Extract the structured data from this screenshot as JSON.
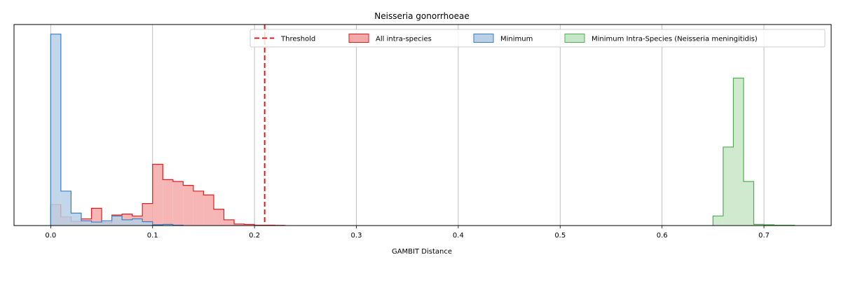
{
  "chart_data": {
    "type": "histogram",
    "title": "Neisseria gonorrhoeae",
    "xlabel": "GAMBIT Distance",
    "ylabel": "",
    "xlim": [
      -0.036,
      0.766
    ],
    "ylim": [
      0,
      1.05
    ],
    "grid": "x",
    "legend_placement": "top-right",
    "x_ticks": [
      0.0,
      0.1,
      0.2,
      0.3,
      0.4,
      0.5,
      0.6,
      0.7
    ],
    "x_tick_labels": [
      "0.0",
      "0.1",
      "0.2",
      "0.3",
      "0.4",
      "0.5",
      "0.6",
      "0.7"
    ],
    "threshold": {
      "name": "Threshold",
      "x": 0.21,
      "color": "#e31a1c"
    },
    "bin_width": 0.01,
    "series": [
      {
        "name": "All intra-species",
        "stroke": "#e31a1c",
        "fill": "#f4a9a9",
        "bins_start": 0.0,
        "values": [
          0.11,
          0.045,
          0.022,
          0.035,
          0.09,
          0.015,
          0.055,
          0.06,
          0.05,
          0.115,
          0.32,
          0.24,
          0.23,
          0.21,
          0.18,
          0.16,
          0.085,
          0.03,
          0.008,
          0.006,
          0.002,
          0.002,
          0.001
        ]
      },
      {
        "name": "Minimum",
        "stroke": "#3a7fc1",
        "fill": "#b9d0e6",
        "bins_start": 0.0,
        "values": [
          1.0,
          0.18,
          0.065,
          0.025,
          0.018,
          0.025,
          0.05,
          0.03,
          0.035,
          0.02,
          0.004,
          0.006,
          0.002
        ]
      },
      {
        "name": "Minimum Intra-Species (Neisseria meningitidis)",
        "stroke": "#4fae4f",
        "fill": "#c7e6c7",
        "bins_start": 0.65,
        "values": [
          0.05,
          0.41,
          0.77,
          0.23,
          0.006,
          0.004,
          0.002,
          0.002
        ]
      }
    ],
    "legend_entries": [
      "Threshold",
      "All intra-species",
      "Minimum",
      "Minimum Intra-Species (Neisseria meningitidis)"
    ]
  }
}
